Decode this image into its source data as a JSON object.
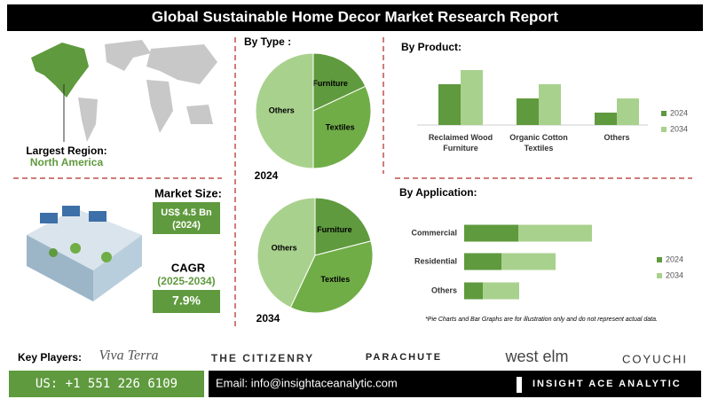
{
  "header": {
    "title": "Global Sustainable Home Decor Market Research Report"
  },
  "region": {
    "label": "Largest Region:",
    "value": "North America"
  },
  "market_size": {
    "label": "Market Size:",
    "value": "US$ 4.5 Bn",
    "year": "(2024)"
  },
  "cagr": {
    "label": "CAGR",
    "period": "(2025-2034)",
    "value": "7.9%"
  },
  "chart_data": [
    {
      "type": "pie",
      "title": "By Type :",
      "label": "2024",
      "categories": [
        "Furniture",
        "Textiles",
        "Others"
      ],
      "values": [
        18,
        32,
        50
      ],
      "colors": [
        "#5f9a3e",
        "#70ad47",
        "#a9d18e"
      ]
    },
    {
      "type": "pie",
      "label": "2034",
      "categories": [
        "Furniture",
        "Textiles",
        "Others"
      ],
      "values": [
        21,
        36,
        43
      ],
      "colors": [
        "#5f9a3e",
        "#70ad47",
        "#a9d18e"
      ]
    },
    {
      "type": "bar",
      "title": "By Product:",
      "categories": [
        "Reclaimed Wood Furniture",
        "Organic Cotton Textiles",
        "Others"
      ],
      "series": [
        {
          "name": "2024",
          "color": "#5f9a3e",
          "values": [
            46,
            30,
            14
          ]
        },
        {
          "name": "2034",
          "color": "#a9d18e",
          "values": [
            62,
            46,
            30
          ]
        }
      ]
    },
    {
      "type": "hbar",
      "title": "By Application:",
      "stacked": true,
      "categories": [
        "Commercial",
        "Residential",
        "Others"
      ],
      "series": [
        {
          "name": "2024",
          "color": "#5f9a3e",
          "values": [
            61,
            42,
            21
          ]
        },
        {
          "name": "2034",
          "color": "#a9d18e",
          "values": [
            83,
            61,
            41
          ]
        }
      ]
    }
  ],
  "footnote": "*Pie Charts and Bar Graphs are for illustration only and do not represent actual data.",
  "key_players": {
    "label": "Key Players:",
    "names": [
      "Viva Terra",
      "THE CITIZENRY",
      "PARACHUTE",
      "west elm",
      "COYUCHI"
    ]
  },
  "contact": {
    "phone": "US: +1 551 226 6109",
    "email": "Email: info@insightaceanalytic.com",
    "brand": "INSIGHT ACE ANALYTIC"
  }
}
